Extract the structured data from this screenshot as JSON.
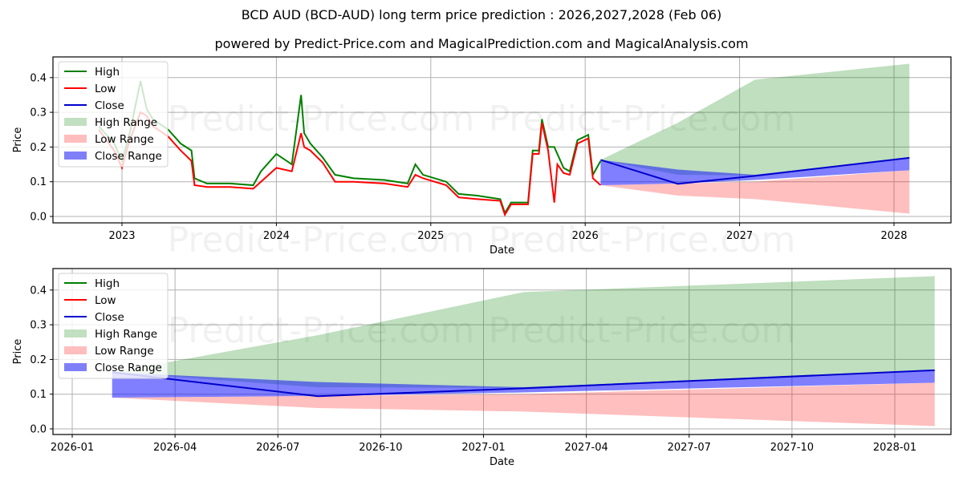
{
  "header": {
    "title": "BCD AUD (BCD-AUD) long term price prediction : 2026,2027,2028 (Feb 06)",
    "subtitle": "powered by Predict-Price.com and MagicalPrediction.com and MagicalAnalysis.com"
  },
  "watermark": "Predict-Price.com",
  "colors": {
    "high": "#008000",
    "low": "#ff0000",
    "close": "#0000cc",
    "high_range": "#c1dfc1",
    "low_range": "#ffbdbd",
    "close_range": "#7f7ff8"
  },
  "legend": [
    {
      "label": "High",
      "kind": "line",
      "color": "#008000"
    },
    {
      "label": "Low",
      "kind": "line",
      "color": "#ff0000"
    },
    {
      "label": "Close",
      "kind": "line",
      "color": "#0000cc"
    },
    {
      "label": "High Range",
      "kind": "patch",
      "color": "#c1dfc1"
    },
    {
      "label": "Low Range",
      "kind": "patch",
      "color": "#ffbdbd"
    },
    {
      "label": "Close Range",
      "kind": "patch",
      "color": "#7f7ff8"
    }
  ],
  "chart_data": [
    {
      "type": "line",
      "title": "BCD AUD (BCD-AUD) long term price prediction : 2026,2027,2028 (Feb 06)",
      "xlabel": "Date",
      "ylabel": "Price",
      "ylim": [
        -0.01,
        0.45
      ],
      "yticks": [
        "0.0",
        "0.1",
        "0.2",
        "0.3",
        "0.4"
      ],
      "xticks": [
        "2023",
        "2024",
        "2025",
        "2026",
        "2027",
        "2028"
      ],
      "grid": true,
      "legend_position": "upper left",
      "history": {
        "x": [
          2022.85,
          2022.95,
          2023.0,
          2023.05,
          2023.12,
          2023.16,
          2023.2,
          2023.3,
          2023.38,
          2023.45,
          2023.47,
          2023.55,
          2023.7,
          2023.85,
          2023.9,
          2024.0,
          2024.1,
          2024.16,
          2024.18,
          2024.22,
          2024.3,
          2024.38,
          2024.5,
          2024.7,
          2024.85,
          2024.9,
          2024.95,
          2025.1,
          2025.18,
          2025.3,
          2025.45,
          2025.48,
          2025.52,
          2025.63,
          2025.66,
          2025.7,
          2025.72,
          2025.76,
          2025.8,
          2025.82,
          2025.86,
          2025.9,
          2025.95,
          2026.02,
          2026.05,
          2026.1
        ],
        "high": [
          0.26,
          0.21,
          0.16,
          0.24,
          0.39,
          0.31,
          0.28,
          0.25,
          0.21,
          0.19,
          0.11,
          0.095,
          0.095,
          0.09,
          0.13,
          0.18,
          0.15,
          0.35,
          0.24,
          0.21,
          0.17,
          0.12,
          0.11,
          0.105,
          0.095,
          0.15,
          0.12,
          0.1,
          0.065,
          0.06,
          0.05,
          0.01,
          0.04,
          0.04,
          0.19,
          0.19,
          0.28,
          0.2,
          0.2,
          0.18,
          0.14,
          0.13,
          0.22,
          0.235,
          0.12,
          0.16
        ],
        "low": [
          0.25,
          0.19,
          0.14,
          0.22,
          0.3,
          0.29,
          0.26,
          0.23,
          0.19,
          0.16,
          0.09,
          0.085,
          0.085,
          0.08,
          0.1,
          0.14,
          0.13,
          0.24,
          0.2,
          0.19,
          0.155,
          0.1,
          0.1,
          0.095,
          0.085,
          0.12,
          0.11,
          0.09,
          0.055,
          0.05,
          0.045,
          0.005,
          0.035,
          0.035,
          0.18,
          0.18,
          0.27,
          0.19,
          0.04,
          0.15,
          0.125,
          0.12,
          0.21,
          0.225,
          0.11,
          0.09
        ]
      },
      "forecast": {
        "x": [
          2026.1,
          2026.6,
          2027.1,
          2028.1
        ],
        "close": [
          0.163,
          0.094,
          0.117,
          0.169
        ],
        "high_range_upper": [
          0.163,
          0.27,
          0.394,
          0.44
        ],
        "high_range_lower": [
          0.163,
          0.12,
          0.118,
          0.17
        ],
        "low_range_upper": [
          0.09,
          0.095,
          0.1,
          0.133
        ],
        "low_range_lower": [
          0.09,
          0.06,
          0.05,
          0.008
        ],
        "close_range_upper": [
          0.163,
          0.135,
          0.12,
          0.169
        ],
        "close_range_lower": [
          0.09,
          0.095,
          0.105,
          0.133
        ]
      }
    },
    {
      "type": "area",
      "xlabel": "Date",
      "ylabel": "Price",
      "ylim": [
        -0.01,
        0.45
      ],
      "yticks": [
        "0.0",
        "0.1",
        "0.2",
        "0.3",
        "0.4"
      ],
      "xticks": [
        "2026-01",
        "2026-04",
        "2026-07",
        "2026-10",
        "2027-01",
        "2027-04",
        "2027-07",
        "2027-10",
        "2028-01"
      ],
      "grid": true,
      "legend_position": "upper left",
      "forecast": {
        "x": [
          "2026-02-06",
          "2026-08-06",
          "2027-02-06",
          "2028-02-06"
        ],
        "close": [
          0.163,
          0.094,
          0.117,
          0.169
        ],
        "high_range_upper": [
          0.163,
          0.27,
          0.394,
          0.44
        ],
        "high_range_lower": [
          0.163,
          0.12,
          0.118,
          0.17
        ],
        "low_range_upper": [
          0.09,
          0.095,
          0.1,
          0.133
        ],
        "low_range_lower": [
          0.09,
          0.06,
          0.05,
          0.008
        ],
        "close_range_upper": [
          0.163,
          0.135,
          0.12,
          0.169
        ],
        "close_range_lower": [
          0.09,
          0.095,
          0.105,
          0.133
        ]
      }
    }
  ]
}
